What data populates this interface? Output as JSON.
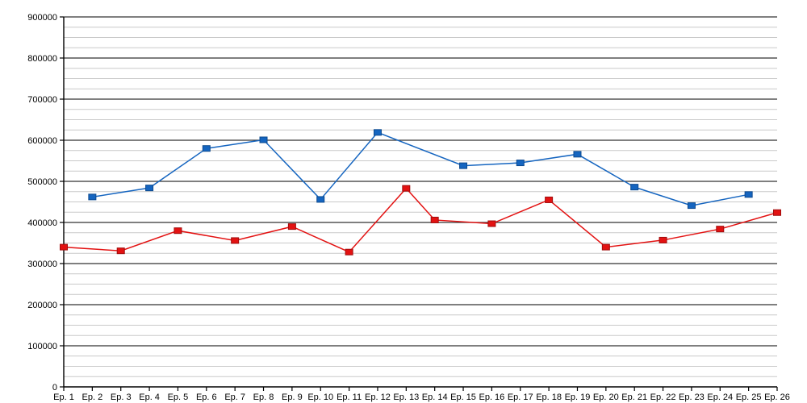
{
  "chart_data": {
    "type": "line",
    "title": "",
    "xlabel": "",
    "ylabel": "",
    "legend": "none",
    "grid": "horizontal-only",
    "x_categories": [
      "Ep. 1",
      "Ep. 2",
      "Ep. 3",
      "Ep. 4",
      "Ep. 5",
      "Ep. 6",
      "Ep. 7",
      "Ep. 8",
      "Ep. 9",
      "Ep. 10",
      "Ep. 11",
      "Ep. 12",
      "Ep. 13",
      "Ep. 14",
      "Ep. 15",
      "Ep. 16",
      "Ep. 17",
      "Ep. 18",
      "Ep. 19",
      "Ep. 20",
      "Ep. 21",
      "Ep. 22",
      "Ep. 23",
      "Ep. 24",
      "Ep. 25",
      "Ep. 26"
    ],
    "ylim": [
      0,
      900000
    ],
    "y_major_interval": 100000,
    "y_minor_interval": 25000,
    "y_tick_labels": [
      "0",
      "100000",
      "200000",
      "300000",
      "400000",
      "500000",
      "600000",
      "700000",
      "800000",
      "900000"
    ],
    "series": [
      {
        "name": "blue-series",
        "color": "#1565c0",
        "marker_stroke": "#0d4a8f",
        "marker": "square",
        "points": [
          {
            "episode": 2,
            "value": 462000
          },
          {
            "episode": 4,
            "value": 484000
          },
          {
            "episode": 6,
            "value": 580000
          },
          {
            "episode": 8,
            "value": 601000
          },
          {
            "episode": 10,
            "value": 456000
          },
          {
            "episode": 12,
            "value": 619000
          },
          {
            "episode": 15,
            "value": 538000
          },
          {
            "episode": 17,
            "value": 545000
          },
          {
            "episode": 19,
            "value": 566000
          },
          {
            "episode": 21,
            "value": 486000
          },
          {
            "episode": 23,
            "value": 441000
          },
          {
            "episode": 25,
            "value": 468000
          }
        ]
      },
      {
        "name": "red-series",
        "color": "#e31212",
        "marker_stroke": "#a00d0d",
        "marker": "square",
        "points": [
          {
            "episode": 1,
            "value": 340000
          },
          {
            "episode": 3,
            "value": 331000
          },
          {
            "episode": 5,
            "value": 380000
          },
          {
            "episode": 7,
            "value": 356000
          },
          {
            "episode": 9,
            "value": 390000
          },
          {
            "episode": 11,
            "value": 328000
          },
          {
            "episode": 13,
            "value": 483000
          },
          {
            "episode": 14,
            "value": 406000
          },
          {
            "episode": 16,
            "value": 397000
          },
          {
            "episode": 18,
            "value": 455000
          },
          {
            "episode": 20,
            "value": 340000
          },
          {
            "episode": 22,
            "value": 357000
          },
          {
            "episode": 24,
            "value": 384000
          },
          {
            "episode": 26,
            "value": 424000
          }
        ]
      }
    ],
    "colors": {
      "background": "#ffffff",
      "axis": "#000000",
      "major_grid": "#333333",
      "minor_grid": "#c9c9c9",
      "tick_label": "#000000"
    }
  }
}
